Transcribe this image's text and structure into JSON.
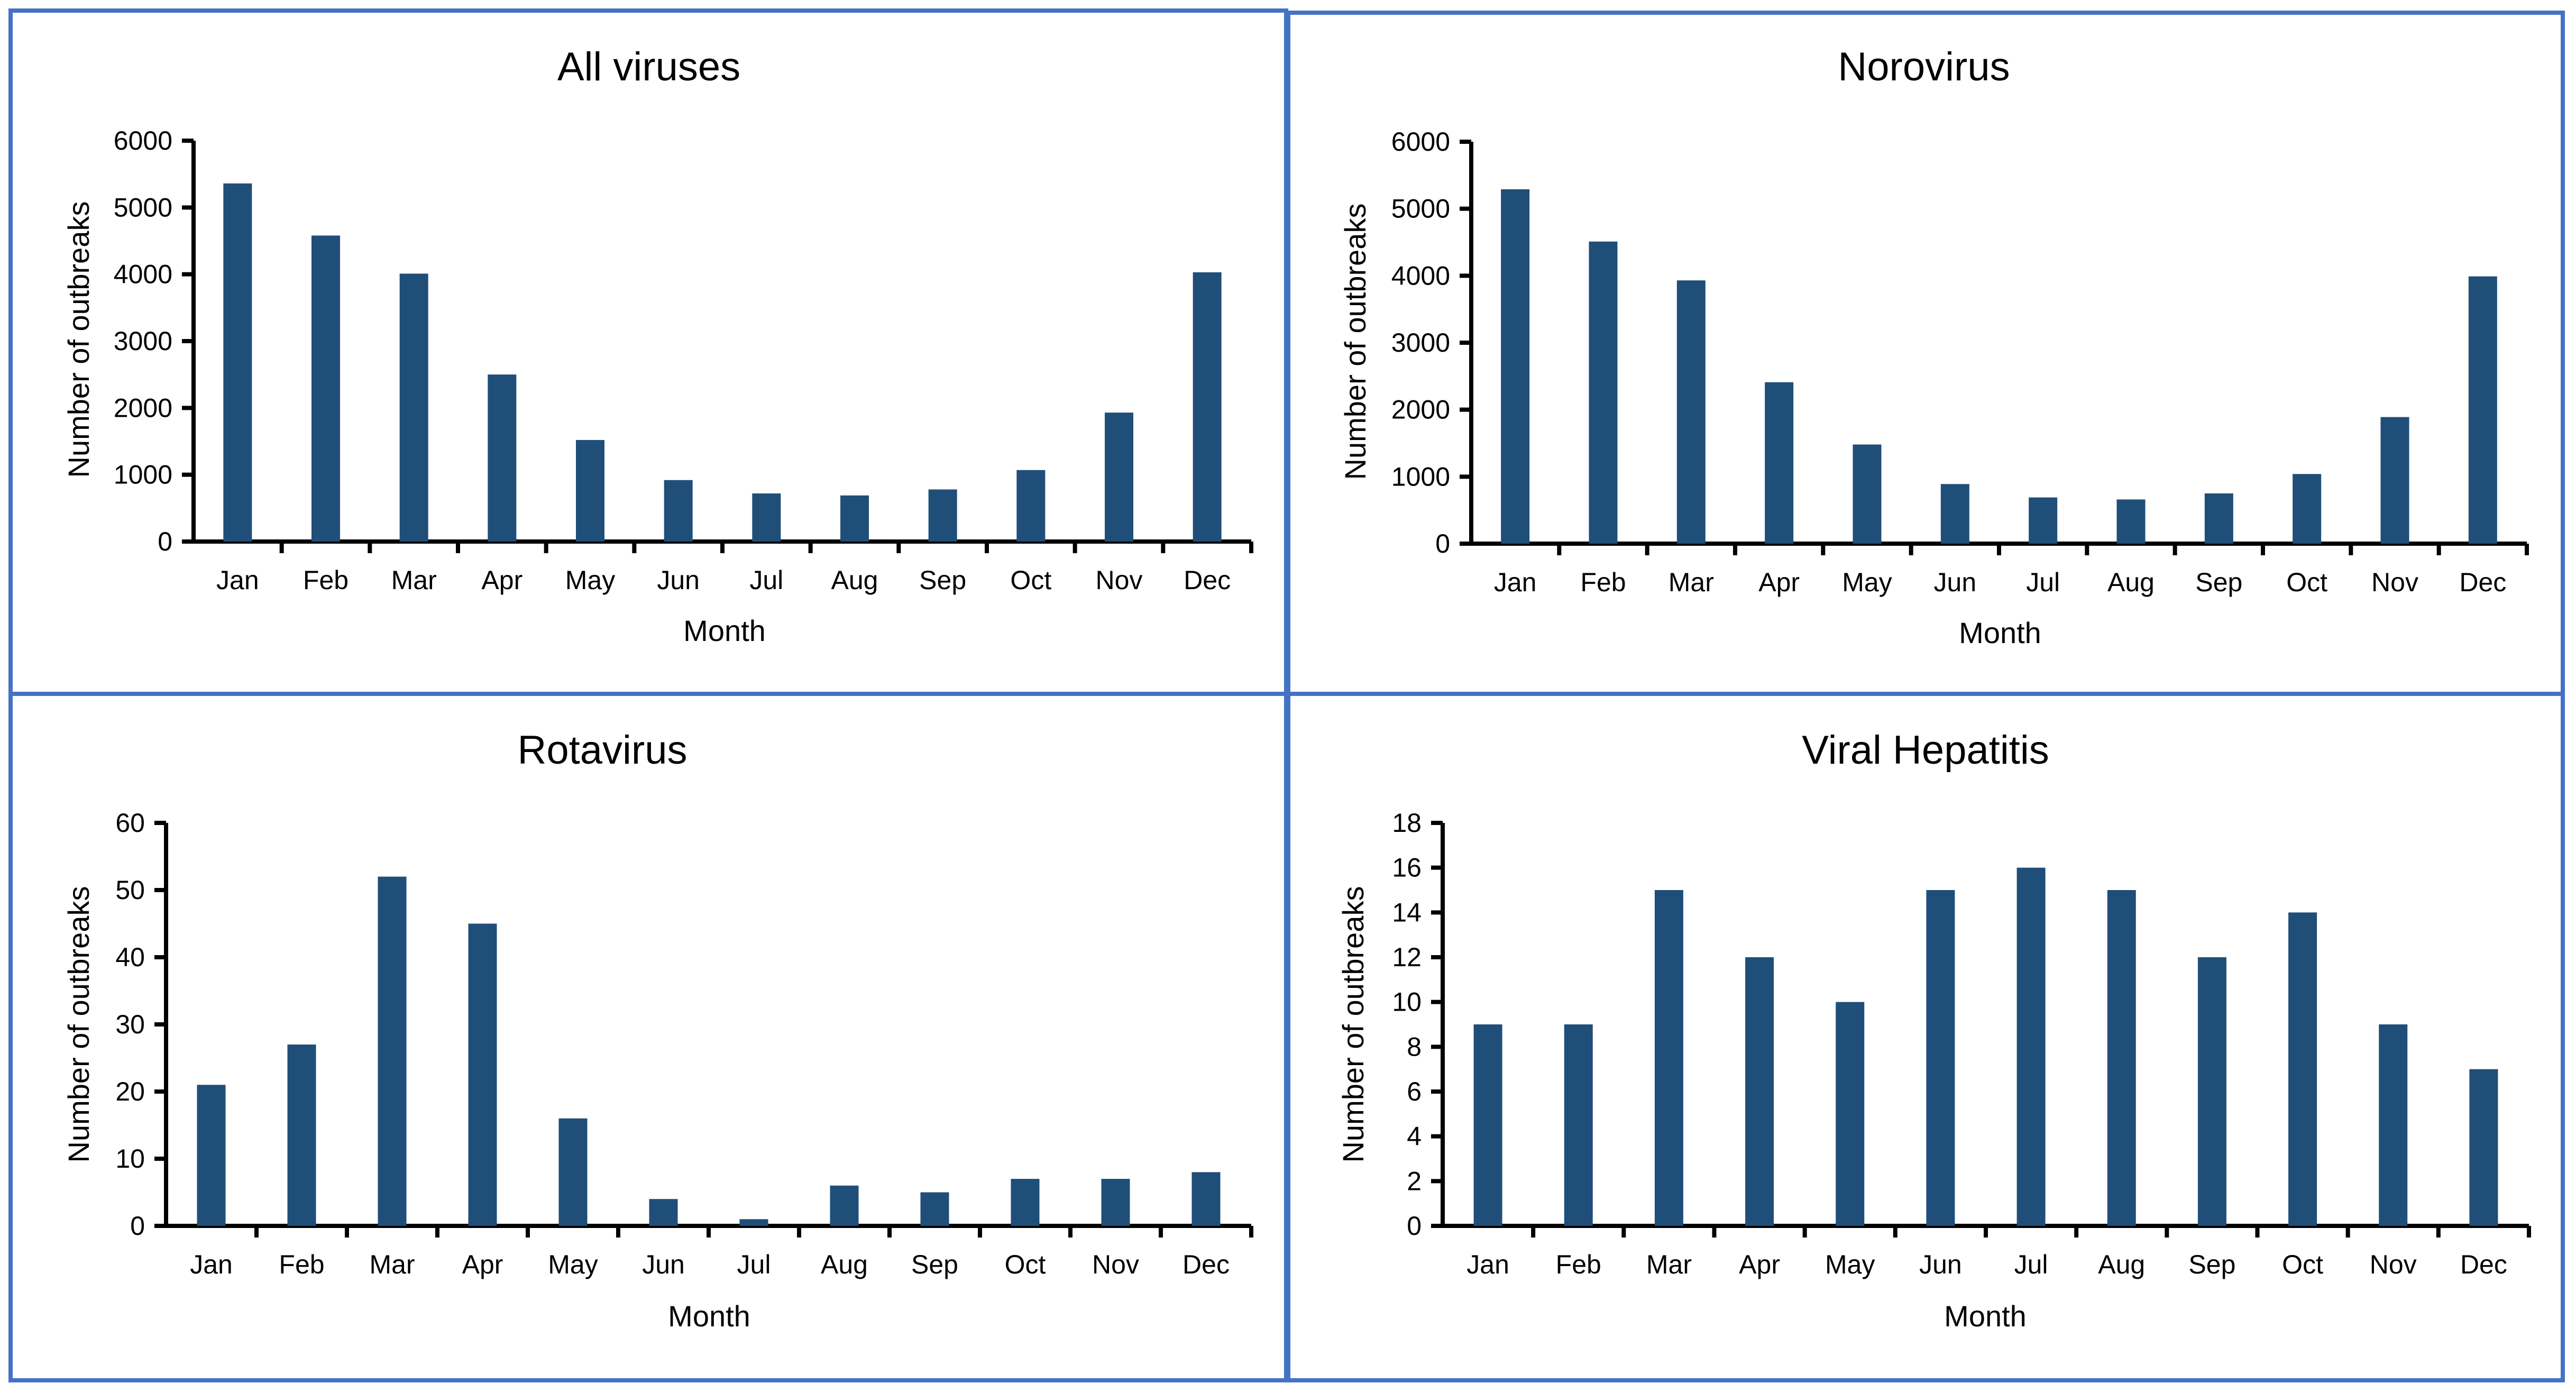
{
  "figure": {
    "frame_color": "#4472C4",
    "bar_color": "#1F4E79"
  },
  "chart_data": [
    {
      "type": "bar",
      "title": "All viruses",
      "xlabel": "Month",
      "ylabel": "Number of outbreaks",
      "categories": [
        "Jan",
        "Feb",
        "Mar",
        "Apr",
        "May",
        "Jun",
        "Jul",
        "Aug",
        "Sep",
        "Oct",
        "Nov",
        "Dec"
      ],
      "values": [
        5360,
        4580,
        4010,
        2500,
        1520,
        920,
        720,
        690,
        780,
        1070,
        1930,
        4030
      ],
      "ylim": [
        0,
        6000
      ],
      "yticks": [
        0,
        1000,
        2000,
        3000,
        4000,
        5000,
        6000
      ],
      "grid": false,
      "legend": "none"
    },
    {
      "type": "bar",
      "title": "Norovirus",
      "xlabel": "Month",
      "ylabel": "Number of outbreaks",
      "categories": [
        "Jan",
        "Feb",
        "Mar",
        "Apr",
        "May",
        "Jun",
        "Jul",
        "Aug",
        "Sep",
        "Oct",
        "Nov",
        "Dec"
      ],
      "values": [
        5290,
        4510,
        3930,
        2410,
        1480,
        890,
        690,
        660,
        750,
        1040,
        1890,
        3990
      ],
      "ylim": [
        0,
        6000
      ],
      "yticks": [
        0,
        1000,
        2000,
        3000,
        4000,
        5000,
        6000
      ],
      "grid": false,
      "legend": "none"
    },
    {
      "type": "bar",
      "title": "Rotavirus",
      "xlabel": "Month",
      "ylabel": "Number of outbreaks",
      "categories": [
        "Jan",
        "Feb",
        "Mar",
        "Apr",
        "May",
        "Jun",
        "Jul",
        "Aug",
        "Sep",
        "Oct",
        "Nov",
        "Dec"
      ],
      "values": [
        21,
        27,
        52,
        45,
        16,
        4,
        1,
        6,
        5,
        7,
        7,
        8
      ],
      "ylim": [
        0,
        60
      ],
      "yticks": [
        0,
        10,
        20,
        30,
        40,
        50,
        60
      ],
      "grid": false,
      "legend": "none"
    },
    {
      "type": "bar",
      "title": "Viral Hepatitis",
      "xlabel": "Month",
      "ylabel": "Number of outbreaks",
      "categories": [
        "Jan",
        "Feb",
        "Mar",
        "Apr",
        "May",
        "Jun",
        "Jul",
        "Aug",
        "Sep",
        "Oct",
        "Nov",
        "Dec"
      ],
      "values": [
        9,
        9,
        15,
        12,
        10,
        15,
        16,
        15,
        12,
        14,
        9,
        7
      ],
      "ylim": [
        0,
        18
      ],
      "yticks": [
        0,
        2,
        4,
        6,
        8,
        10,
        12,
        14,
        16,
        18
      ],
      "grid": false,
      "legend": "none"
    }
  ]
}
